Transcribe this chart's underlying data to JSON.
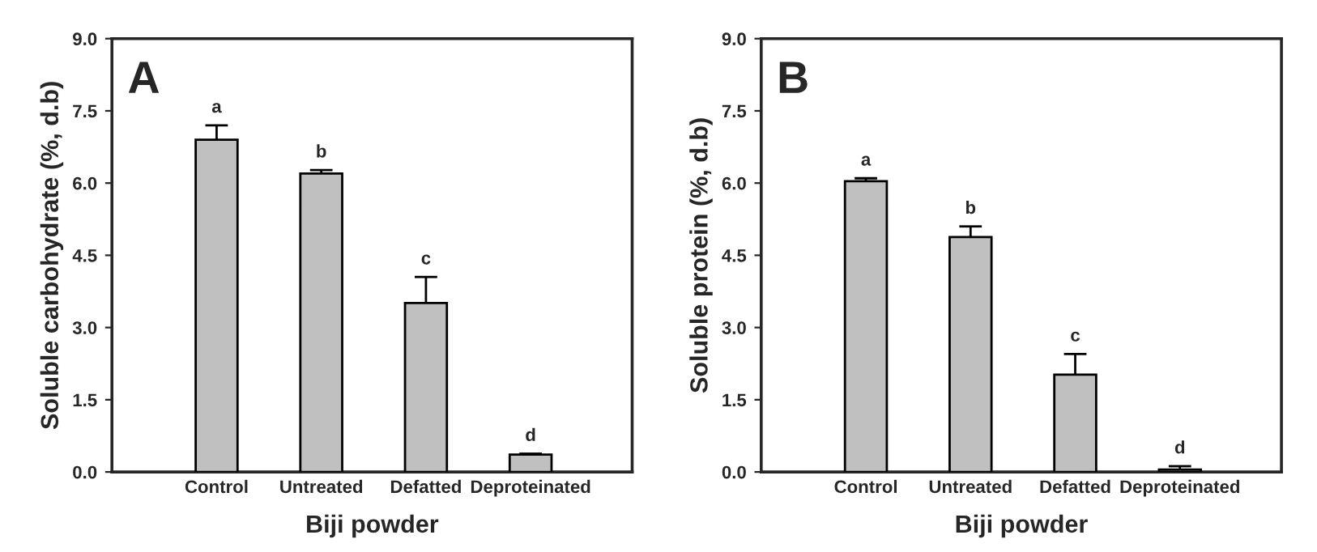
{
  "chart_data": [
    {
      "type": "bar",
      "title": "A",
      "xlabel": "Biji powder",
      "ylabel": "Soluble carbohydrate (%, d.b)",
      "categories": [
        "Control",
        "Untreated",
        "Defatted",
        "Deproteinated"
      ],
      "values": [
        6.9,
        6.2,
        3.51,
        0.36
      ],
      "errors": [
        0.3,
        0.07,
        0.54,
        0.02
      ],
      "color": "#c0c0c0",
      "ylim": [
        0,
        9
      ],
      "yticks": [
        {
          "value": 0,
          "label": "0.0"
        },
        {
          "value": 1.5,
          "label": "1.5"
        },
        {
          "value": 3,
          "label": "3.0"
        },
        {
          "value": 4.5,
          "label": "4.5"
        },
        {
          "value": 6,
          "label": "6.0"
        },
        {
          "value": 7.5,
          "label": "7.5"
        },
        {
          "value": 9,
          "label": "9.0"
        }
      ],
      "annotations": [
        "a",
        "b",
        "c",
        "d"
      ]
    },
    {
      "type": "bar",
      "title": "B",
      "xlabel": "Biji powder",
      "ylabel": "Soluble protein (%, d.b)",
      "categories": [
        "Control",
        "Untreated",
        "Defatted",
        "Deproteinated"
      ],
      "values": [
        6.04,
        4.88,
        2.02,
        0.05
      ],
      "errors": [
        0.06,
        0.22,
        0.43,
        [
          0.05,
          0.07
        ]
      ],
      "color": "#c0c0c0",
      "ylim": [
        0,
        9
      ],
      "yticks": [
        {
          "value": 0,
          "label": "0.0"
        },
        {
          "value": 1.5,
          "label": "1.5"
        },
        {
          "value": 3,
          "label": "3.0"
        },
        {
          "value": 4.5,
          "label": "4.5"
        },
        {
          "value": 6,
          "label": "6.0"
        },
        {
          "value": 7.5,
          "label": "7.5"
        },
        {
          "value": 9,
          "label": "9.0"
        }
      ],
      "annotations": [
        "a",
        "b",
        "c",
        "d"
      ]
    }
  ]
}
